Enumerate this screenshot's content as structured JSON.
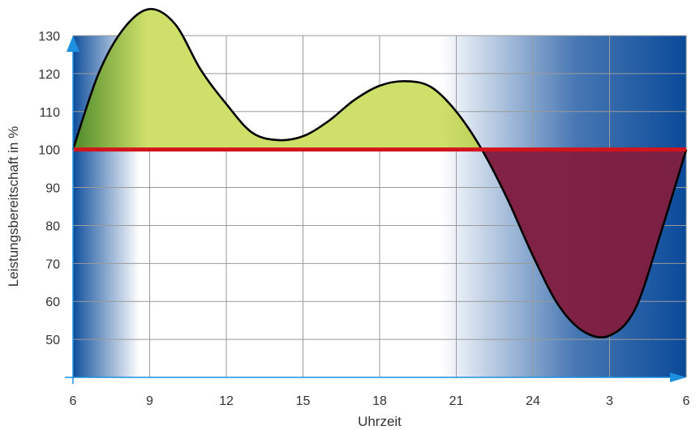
{
  "colors": {
    "night_blue": "#0a4a9a",
    "grid": "#9a9a9a",
    "surplus_fill": "#cfe06a",
    "deficit_fill": "#8a2547",
    "reference_line": "#d4141c",
    "axis_blue": "#1e90e0",
    "curve": "#000000"
  },
  "chart_data": {
    "type": "area",
    "title": "",
    "xlabel": "Uhrzeit",
    "ylabel": "Leistungsbereitschaft in %",
    "x_ticks": [
      "6",
      "9",
      "12",
      "15",
      "18",
      "21",
      "24",
      "3",
      "6"
    ],
    "y_ticks": [
      50,
      60,
      70,
      80,
      90,
      100,
      110,
      120,
      130
    ],
    "ylim": [
      40,
      130
    ],
    "reference_value": 100,
    "grid": true,
    "series": [
      {
        "x": [
          "6:00",
          "7:00",
          "8:00",
          "9:00",
          "10:00",
          "11:00",
          "12:00",
          "13:00",
          "14:00",
          "15:00",
          "16:00",
          "17:00",
          "18:00",
          "19:00",
          "20:00",
          "21:00",
          "22:00",
          "23:00",
          "24:00",
          "1:00",
          "2:00",
          "3:00",
          "4:00",
          "5:00",
          "6:00"
        ],
        "values": [
          100,
          120,
          132,
          137,
          133,
          121,
          112,
          104.5,
          102.5,
          103.5,
          107.5,
          113,
          116.8,
          118,
          116.5,
          110,
          100,
          87,
          72,
          59,
          52,
          51,
          58,
          78,
          100
        ]
      }
    ]
  }
}
